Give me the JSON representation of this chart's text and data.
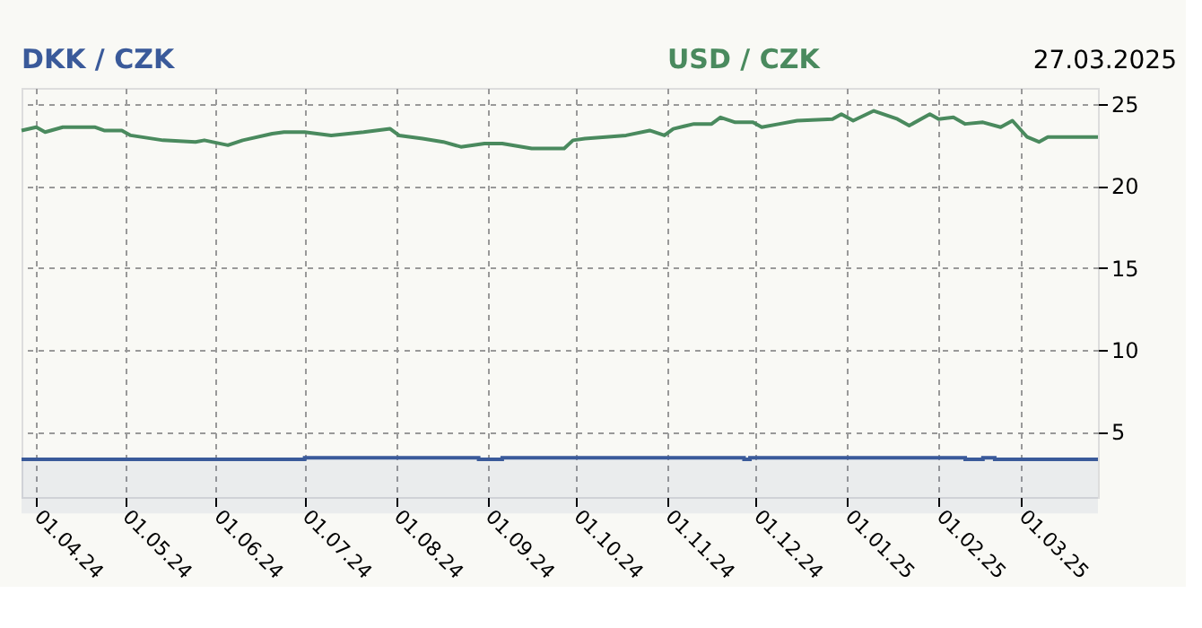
{
  "chart_data": {
    "type": "line",
    "annotations": [
      "27.03.2025"
    ],
    "series": [
      {
        "name": "DKK / CZK",
        "color": "#3a5a9a",
        "type": "area",
        "x": [
          "2024-03-27",
          "2024-06-30",
          "2024-07-01",
          "2024-08-28",
          "2024-08-29",
          "2024-09-05",
          "2024-09-06",
          "2024-11-25",
          "2024-11-27",
          "2024-11-29",
          "2025-02-08",
          "2025-02-10",
          "2025-02-16",
          "2025-02-20",
          "2025-03-27"
        ],
        "values": [
          3.3,
          3.3,
          3.4,
          3.4,
          3.3,
          3.3,
          3.4,
          3.4,
          3.3,
          3.4,
          3.4,
          3.3,
          3.4,
          3.3,
          3.3
        ]
      },
      {
        "name": "USD / CZK",
        "color": "#4a8a5e",
        "x": [
          "2024-03-27",
          "2024-04-01",
          "2024-04-04",
          "2024-04-10",
          "2024-04-21",
          "2024-04-24",
          "2024-04-30",
          "2024-05-03",
          "2024-05-14",
          "2024-05-25",
          "2024-05-28",
          "2024-06-05",
          "2024-06-10",
          "2024-06-20",
          "2024-06-24",
          "2024-07-01",
          "2024-07-10",
          "2024-07-21",
          "2024-07-30",
          "2024-08-02",
          "2024-08-10",
          "2024-08-17",
          "2024-08-23",
          "2024-08-31",
          "2024-09-06",
          "2024-09-16",
          "2024-09-27",
          "2024-09-30",
          "2024-10-04",
          "2024-10-18",
          "2024-10-26",
          "2024-10-31",
          "2024-11-03",
          "2024-11-10",
          "2024-11-16",
          "2024-11-19",
          "2024-11-24",
          "2024-11-30",
          "2024-12-03",
          "2024-12-09",
          "2024-12-15",
          "2024-12-27",
          "2024-12-30",
          "2025-01-03",
          "2025-01-10",
          "2025-01-18",
          "2025-01-22",
          "2025-01-29",
          "2025-02-01",
          "2025-02-06",
          "2025-02-10",
          "2025-02-16",
          "2025-02-22",
          "2025-02-26",
          "2025-03-03",
          "2025-03-07",
          "2025-03-10",
          "2025-03-27"
        ],
        "values": [
          23.4,
          23.6,
          23.3,
          23.6,
          23.6,
          23.4,
          23.4,
          23.1,
          22.8,
          22.7,
          22.8,
          22.5,
          22.8,
          23.2,
          23.3,
          23.3,
          23.1,
          23.3,
          23.5,
          23.1,
          22.9,
          22.7,
          22.4,
          22.6,
          22.6,
          22.3,
          22.3,
          22.8,
          22.9,
          23.1,
          23.4,
          23.1,
          23.5,
          23.8,
          23.8,
          24.2,
          23.9,
          23.9,
          23.6,
          23.8,
          24.0,
          24.1,
          24.4,
          24.0,
          24.6,
          24.1,
          23.7,
          24.4,
          24.1,
          24.2,
          23.8,
          23.9,
          23.6,
          24.0,
          23.0,
          22.7,
          23.0,
          23.0
        ]
      }
    ],
    "xlim": [
      "2024-03-27",
      "2025-03-27"
    ],
    "xticks": [
      {
        "value": "2024-04-01",
        "label": "01.04.24"
      },
      {
        "value": "2024-05-01",
        "label": "01.05.24"
      },
      {
        "value": "2024-06-01",
        "label": "01.06.24"
      },
      {
        "value": "2024-07-01",
        "label": "01.07.24"
      },
      {
        "value": "2024-08-01",
        "label": "01.08.24"
      },
      {
        "value": "2024-09-01",
        "label": "01.09.24"
      },
      {
        "value": "2024-10-01",
        "label": "01.10.24"
      },
      {
        "value": "2024-11-01",
        "label": "01.11.24"
      },
      {
        "value": "2024-12-01",
        "label": "01.12.24"
      },
      {
        "value": "2025-01-01",
        "label": "01.01.25"
      },
      {
        "value": "2025-02-01",
        "label": "01.02.25"
      },
      {
        "value": "2025-03-01",
        "label": "01.03.25"
      }
    ],
    "ylim": [
      1,
      26
    ],
    "yticks": [
      5,
      10,
      15,
      20,
      25
    ],
    "grid": true
  }
}
